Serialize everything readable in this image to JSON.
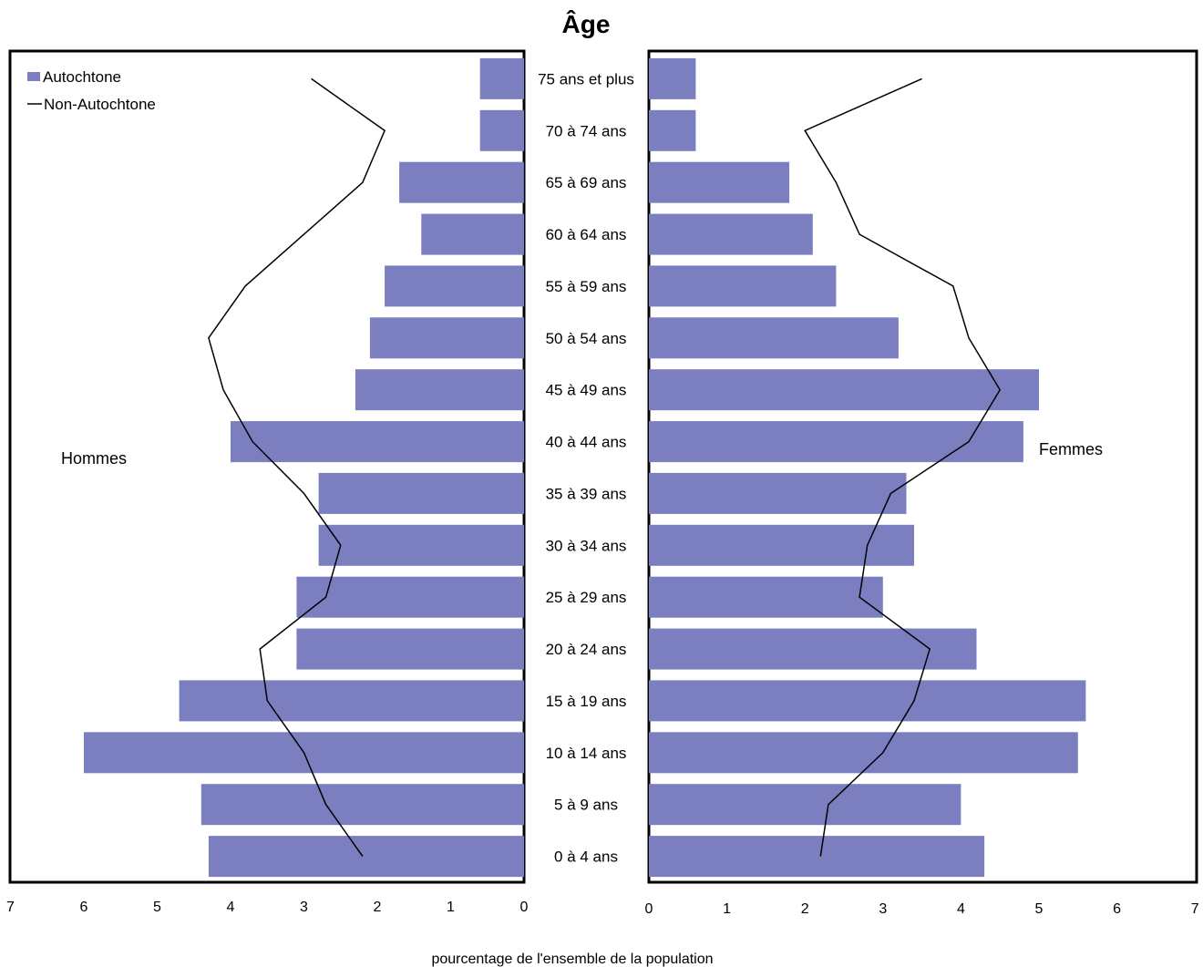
{
  "chart_data": {
    "type": "bar",
    "subtype": "population-pyramid",
    "title": "Âge",
    "xlabel": "pourcentage de l'ensemble de la population",
    "categories": [
      "0 à 4 ans",
      "5 à 9 ans",
      "10 à 14 ans",
      "15 à 19 ans",
      "20 à 24 ans",
      "25 à 29 ans",
      "30 à 34 ans",
      "35 à 39 ans",
      "40 à 44 ans",
      "45 à 49 ans",
      "50 à 54 ans",
      "55 à 59 ans",
      "60 à 64 ans",
      "65 à 69 ans",
      "70 à 74 ans",
      "75 ans et plus"
    ],
    "panels": {
      "left": {
        "label": "Hommes",
        "xlim": [
          7,
          0
        ],
        "ticks": [
          "7",
          "6",
          "5",
          "4",
          "3",
          "2",
          "1",
          "0"
        ]
      },
      "right": {
        "label": "Femmes",
        "xlim": [
          0,
          7
        ],
        "ticks": [
          "0",
          "1",
          "2",
          "3",
          "4",
          "5",
          "6",
          "7"
        ]
      }
    },
    "series": [
      {
        "name": "Autochtone",
        "kind": "bar",
        "color": "#7b7fbf",
        "hommes": [
          4.3,
          4.4,
          6.0,
          4.7,
          3.1,
          3.1,
          2.8,
          2.8,
          4.0,
          2.3,
          2.1,
          1.9,
          1.4,
          1.7,
          0.6,
          0.6
        ],
        "femmes": [
          4.3,
          4.0,
          5.5,
          5.6,
          4.2,
          3.0,
          3.4,
          3.3,
          4.8,
          5.0,
          3.2,
          2.4,
          2.1,
          1.8,
          0.6,
          0.6
        ]
      },
      {
        "name": "Non-Autochtone",
        "kind": "line",
        "color": "#000000",
        "hommes": [
          2.2,
          2.7,
          3.0,
          3.5,
          3.6,
          2.7,
          2.5,
          3.0,
          3.7,
          4.1,
          4.3,
          3.8,
          3.0,
          2.2,
          1.9,
          2.9
        ],
        "femmes": [
          2.2,
          2.3,
          3.0,
          3.4,
          3.6,
          2.7,
          2.8,
          3.1,
          4.1,
          4.5,
          4.1,
          3.9,
          2.7,
          2.4,
          2.0,
          3.5
        ]
      }
    ],
    "legend": {
      "position": "top-left",
      "entries": [
        "Autochtone",
        "Non-Autochtone"
      ]
    },
    "grid": false
  }
}
